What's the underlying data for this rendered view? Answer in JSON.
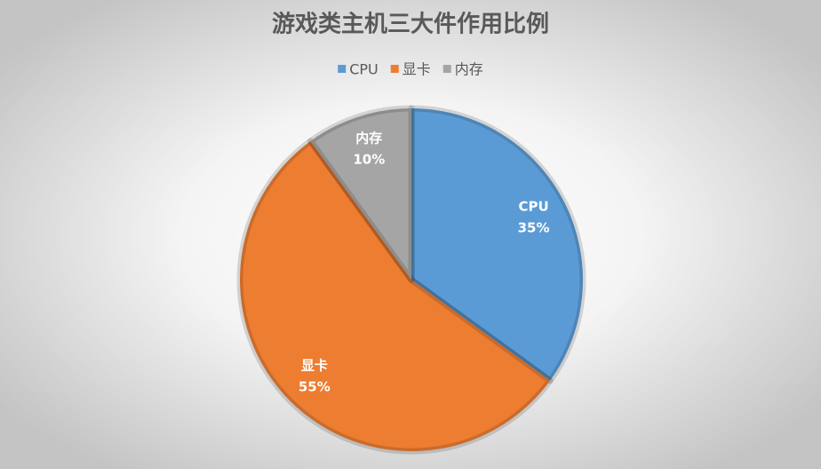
{
  "chart_data": {
    "type": "pie",
    "title": "游戏类主机三大件作用比例",
    "categories": [
      "CPU",
      "显卡",
      "内存"
    ],
    "values": [
      35,
      55,
      10
    ],
    "value_labels": [
      "35%",
      "55%",
      "10%"
    ],
    "colors": [
      "#5b9bd5",
      "#ed7d31",
      "#a5a5a5"
    ],
    "legend": "top"
  }
}
